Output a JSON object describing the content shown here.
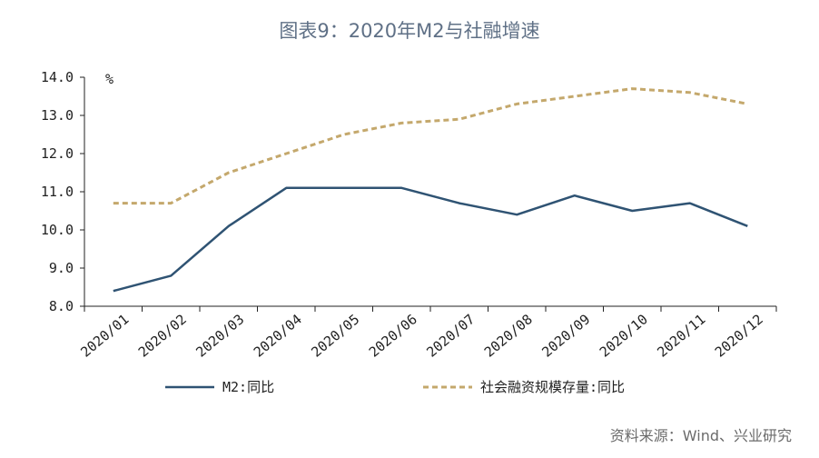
{
  "chart_data": {
    "type": "line",
    "title": "图表9：2020年M2与社融增速",
    "ylabel": "%",
    "xlabel": "",
    "ylim": [
      8.0,
      14.0
    ],
    "yticks": [
      "8.0",
      "9.0",
      "10.0",
      "11.0",
      "12.0",
      "13.0",
      "14.0"
    ],
    "categories": [
      "2020/01",
      "2020/02",
      "2020/03",
      "2020/04",
      "2020/05",
      "2020/06",
      "2020/07",
      "2020/08",
      "2020/09",
      "2020/10",
      "2020/11",
      "2020/12"
    ],
    "series": [
      {
        "name": "M2:同比",
        "color": "#2f5373",
        "style": "solid",
        "values": [
          8.4,
          8.8,
          10.1,
          11.1,
          11.1,
          11.1,
          10.7,
          10.4,
          10.9,
          10.5,
          10.7,
          10.1
        ]
      },
      {
        "name": "社会融资规模存量:同比",
        "color": "#c4a86c",
        "style": "dashed",
        "values": [
          10.7,
          10.7,
          11.5,
          12.0,
          12.5,
          12.8,
          12.9,
          13.3,
          13.5,
          13.7,
          13.6,
          13.3
        ]
      }
    ],
    "grid": false,
    "legend_position": "bottom"
  },
  "source": "资料来源：Wind、兴业研究"
}
